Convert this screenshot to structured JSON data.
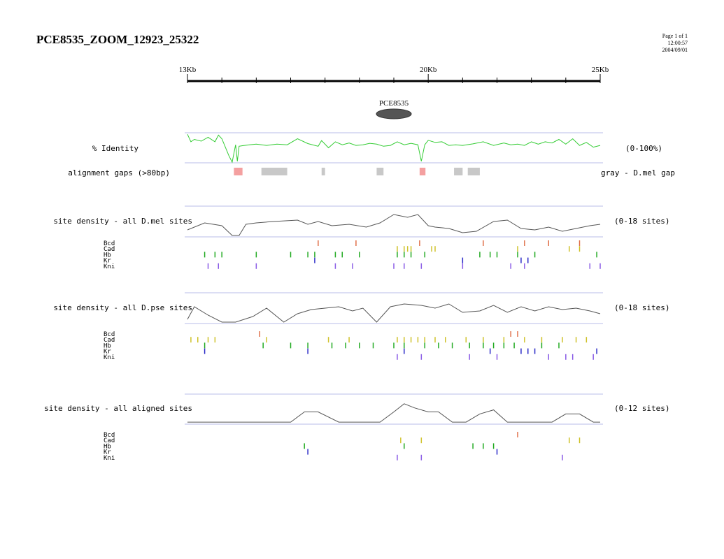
{
  "header": {
    "title": "PCE8535_ZOOM_12923_25322",
    "page": "Page 1 of 1",
    "time": "12:00:57",
    "date": "2004/09/01"
  },
  "chart_data": {
    "type": "genome-browser",
    "axis": {
      "start_kb": 13,
      "end_kb": 25,
      "mid_kb": 20,
      "tick_labels": [
        "13Kb",
        "20Kb",
        "25Kb"
      ]
    },
    "feature": {
      "label": "PCE8535",
      "position_kb": 19.0
    },
    "identity_track": {
      "label": "% Identity",
      "range": "(0-100%)",
      "ylim": [
        0,
        100
      ],
      "x": [
        13.0,
        13.1,
        13.2,
        13.4,
        13.6,
        13.8,
        13.9,
        14.0,
        14.2,
        14.3,
        14.4,
        14.45,
        14.5,
        14.6,
        14.8,
        15.0,
        15.3,
        15.6,
        15.9,
        16.2,
        16.5,
        16.8,
        16.9,
        17.1,
        17.3,
        17.5,
        17.7,
        17.9,
        18.1,
        18.3,
        18.5,
        18.7,
        18.9,
        19.1,
        19.3,
        19.5,
        19.7,
        19.8,
        19.9,
        20.0,
        20.2,
        20.4,
        20.6,
        20.8,
        21.0,
        21.3,
        21.6,
        21.9,
        22.2,
        22.4,
        22.6,
        22.8,
        23.0,
        23.2,
        23.4,
        23.6,
        23.8,
        24.0,
        24.2,
        24.4,
        24.6,
        24.8,
        25.0
      ],
      "y": [
        95,
        70,
        78,
        72,
        85,
        70,
        92,
        80,
        25,
        2,
        60,
        5,
        55,
        57,
        60,
        62,
        58,
        62,
        60,
        80,
        64,
        55,
        74,
        50,
        70,
        60,
        66,
        58,
        60,
        65,
        62,
        55,
        58,
        70,
        60,
        65,
        60,
        5,
        60,
        75,
        68,
        70,
        58,
        60,
        58,
        63,
        70,
        58,
        66,
        60,
        62,
        58,
        70,
        62,
        70,
        66,
        78,
        62,
        80,
        58,
        68,
        52,
        58
      ]
    },
    "gaps_track": {
      "label": "alignment gaps (>80bp)",
      "legend": "gray - D.mel gap",
      "gaps": [
        {
          "start": 14.35,
          "end": 14.6,
          "color": "#f4a0a0"
        },
        {
          "start": 15.15,
          "end": 15.9,
          "color": "#c8c8c8"
        },
        {
          "start": 16.9,
          "end": 17.0,
          "color": "#c8c8c8"
        },
        {
          "start": 18.5,
          "end": 18.7,
          "color": "#c8c8c8"
        },
        {
          "start": 19.75,
          "end": 19.92,
          "color": "#f4a0a0"
        },
        {
          "start": 20.75,
          "end": 21.0,
          "color": "#c8c8c8"
        },
        {
          "start": 21.15,
          "end": 21.5,
          "color": "#c8c8c8"
        }
      ]
    },
    "density_tracks": [
      {
        "label": "site density - all D.mel sites",
        "range": "(0-18 sites)",
        "ylim": [
          0,
          18
        ],
        "x": [
          13.0,
          13.5,
          14.0,
          14.3,
          14.5,
          14.7,
          15.0,
          15.5,
          16.2,
          16.5,
          16.8,
          17.2,
          17.7,
          18.2,
          18.6,
          19.0,
          19.4,
          19.7,
          20.0,
          20.2,
          20.6,
          21.0,
          21.4,
          21.9,
          22.3,
          22.7,
          23.1,
          23.5,
          23.9,
          24.3,
          24.7,
          25.0
        ],
        "y": [
          5,
          10,
          8,
          1,
          1,
          9,
          10,
          11,
          12,
          9,
          11,
          8,
          9,
          7,
          10,
          16,
          14,
          16,
          8,
          7,
          6,
          3,
          4,
          11,
          12,
          6,
          5,
          7,
          4,
          6,
          8,
          9
        ]
      },
      {
        "label": "site density - all D.pse sites",
        "range": "(0-18 sites)",
        "ylim": [
          0,
          18
        ],
        "x": [
          13.0,
          13.2,
          13.6,
          14.0,
          14.4,
          14.9,
          15.3,
          15.8,
          16.2,
          16.6,
          17.0,
          17.4,
          17.8,
          18.1,
          18.5,
          18.9,
          19.3,
          19.8,
          20.2,
          20.6,
          21.0,
          21.5,
          21.9,
          22.3,
          22.7,
          23.1,
          23.5,
          23.9,
          24.3,
          24.7,
          25.0
        ],
        "y": [
          3,
          12,
          6,
          1,
          1,
          5,
          11,
          1,
          7,
          10,
          11,
          12,
          9,
          11,
          1,
          12,
          14,
          13,
          11,
          14,
          8,
          9,
          13,
          8,
          12,
          9,
          12,
          10,
          11,
          9,
          7
        ]
      },
      {
        "label": "site density - all aligned sites",
        "range": "(0-12 sites)",
        "ylim": [
          0,
          12
        ],
        "x": [
          13.0,
          13.3,
          14.0,
          15.0,
          16.0,
          16.4,
          16.8,
          17.4,
          18.0,
          18.6,
          19.0,
          19.3,
          19.6,
          20.0,
          20.3,
          20.7,
          21.1,
          21.5,
          21.9,
          22.3,
          22.7,
          23.1,
          23.6,
          24.0,
          24.4,
          24.8,
          25.0
        ],
        "y": [
          1,
          1,
          1,
          1,
          1,
          6,
          6,
          1,
          1,
          1,
          6,
          10,
          8,
          6,
          6,
          1,
          1,
          5,
          7,
          1,
          1,
          1,
          1,
          5,
          5,
          1,
          1
        ]
      }
    ],
    "factor_tracks": [
      {
        "rows": [
          {
            "name": "Bcd",
            "color": "#e0704a",
            "positions": [
              16.8,
              17.9,
              19.75,
              21.6,
              22.8,
              23.5,
              24.4
            ]
          },
          {
            "name": "Cad",
            "color": "#cfc22a",
            "positions": [
              19.1,
              19.3,
              19.4,
              19.5,
              20.1,
              20.2,
              22.6,
              24.1,
              24.4
            ]
          },
          {
            "name": "Hb",
            "color": "#22aa22",
            "positions": [
              13.5,
              13.8,
              14.0,
              15.0,
              16.0,
              16.5,
              16.7,
              17.3,
              17.5,
              18.0,
              19.1,
              19.3,
              19.5,
              19.9,
              21.5,
              21.8,
              22.0,
              22.6,
              23.1,
              24.9
            ]
          },
          {
            "name": "Kr",
            "color": "#2c2cc8",
            "positions": [
              16.7,
              21.0,
              22.7,
              22.9
            ]
          },
          {
            "name": "Kni",
            "color": "#8a5ce6",
            "positions": [
              13.6,
              13.9,
              15.0,
              17.3,
              17.8,
              19.0,
              19.3,
              19.8,
              21.0,
              22.4,
              22.8,
              24.7,
              25.0
            ]
          }
        ]
      },
      {
        "rows": [
          {
            "name": "Bcd",
            "color": "#e0704a",
            "positions": [
              15.1,
              22.4,
              22.6
            ]
          },
          {
            "name": "Cad",
            "color": "#cfc22a",
            "positions": [
              13.1,
              13.3,
              13.6,
              13.8,
              15.3,
              17.1,
              17.7,
              19.1,
              19.3,
              19.5,
              19.7,
              19.9,
              20.2,
              20.5,
              21.1,
              21.6,
              22.2,
              22.8,
              23.3,
              23.9,
              24.3,
              24.6
            ]
          },
          {
            "name": "Hb",
            "color": "#22aa22",
            "positions": [
              13.5,
              15.2,
              16.0,
              16.5,
              17.2,
              17.6,
              18.0,
              18.4,
              19.0,
              19.3,
              19.9,
              20.3,
              20.7,
              21.2,
              21.6,
              21.9,
              22.2,
              22.5,
              23.3,
              23.8
            ]
          },
          {
            "name": "Kr",
            "color": "#2c2cc8",
            "positions": [
              13.5,
              16.5,
              19.3,
              21.8,
              22.7,
              22.9,
              23.1,
              24.9
            ]
          },
          {
            "name": "Kni",
            "color": "#8a5ce6",
            "positions": [
              19.1,
              19.8,
              21.2,
              22.0,
              23.5,
              24.0,
              24.2,
              24.8
            ]
          }
        ]
      },
      {
        "rows": [
          {
            "name": "Bcd",
            "color": "#e0704a",
            "positions": [
              22.6
            ]
          },
          {
            "name": "Cad",
            "color": "#cfc22a",
            "positions": [
              19.2,
              19.8,
              24.1,
              24.4
            ]
          },
          {
            "name": "Hb",
            "color": "#22aa22",
            "positions": [
              16.4,
              19.3,
              21.3,
              21.6,
              21.9
            ]
          },
          {
            "name": "Kr",
            "color": "#2c2cc8",
            "positions": [
              16.5,
              22.0
            ]
          },
          {
            "name": "Kni",
            "color": "#8a5ce6",
            "positions": [
              19.1,
              19.8,
              23.9
            ]
          }
        ]
      }
    ]
  }
}
